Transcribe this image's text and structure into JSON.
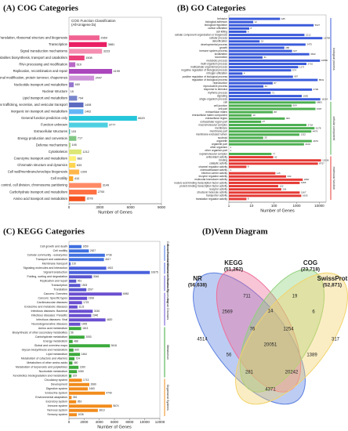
{
  "chart_data": [
    {
      "type": "bar",
      "panel": "(A) COG Categories",
      "title": "COG Function Classification",
      "subtitle": "(All-Unigene.fa)",
      "x_label": "Number of Genes",
      "categories": [
        "Translation, ribosomal structure and biogenesis",
        "Transcription",
        "Signal transduction mechanisms",
        "Secondary metabolites biosynthesis, transport and catabolism",
        "RNA processing and modification",
        "Replication, recombination and repair",
        "Posttranslational modification, protein turnover, chaperones",
        "Nucleotide transport and metabolism",
        "Nuclear structure",
        "Lipid transport and metabolism",
        "Intracellular trafficking, secretion, and vesicular transport",
        "Inorganic ion transport and metabolism",
        "General function prediction only",
        "Function unknown",
        "Extracellular structures",
        "Energy production and conversion",
        "Defense mechanisms",
        "Cytoskeleton",
        "Coenzyme transport and metabolism",
        "Chromatin structure and dynamics",
        "Cell wall/membrane/envelope biogenesis",
        "Cell motility",
        "Cell cycle control, cell division, chromosome partitioning",
        "Carbohydrate transport and metabolism",
        "Amino acid transport and metabolism"
      ],
      "values": [
        2969,
        3681,
        3223,
        1508,
        619,
        4199,
        2447,
        460,
        15,
        794,
        1408,
        1402,
        6620,
        3777,
        103,
        717,
        146,
        1212,
        682,
        633,
        1000,
        410,
        3149,
        2700,
        1578
      ],
      "colors": [
        "#f06292",
        "#e91e63",
        "#f48fb1",
        "#ec407a",
        "#ba68c8",
        "#ab47bc",
        "#ce93d8",
        "#9575cd",
        "#7e57c2",
        "#7986cb",
        "#5c6bc0",
        "#64b5f6",
        "#26c6da",
        "#4dd0e1",
        "#4db6ac",
        "#81c784",
        "#aed581",
        "#dce775",
        "#fff176",
        "#ffd54f",
        "#ffb74d",
        "#ffa726",
        "#ff8a65",
        "#ff7043",
        "#f4511e"
      ],
      "xlim": [
        0,
        9000
      ],
      "xticks": [
        0,
        3000,
        6000,
        9000
      ]
    },
    {
      "type": "bar",
      "panel": "(B) GO Categories",
      "x_label": "Number of Genes",
      "xscale": "log",
      "groups": [
        {
          "name": "biological process",
          "color": "#3b5bdb",
          "categories": [
            "behavior",
            "biological adhesion",
            "biological regulation",
            "carbon utilization",
            "cell killing",
            "cellular component organization or biogenesis",
            "cellular process",
            "detoxification",
            "developmental process",
            "growth",
            "immune system process",
            "localization",
            "locomotion",
            "metabolic process",
            "multi-organism process",
            "multicellular organismal process",
            "negative regulation of biological process",
            "nitrogen utilization",
            "positive regulation of biological process",
            "regulation of biological process",
            "reproduction",
            "reproductive process",
            "response to stimulus",
            "rhythmic process",
            "signaling",
            "single-organism process"
          ],
          "values": [
            185,
            12,
            5627,
            8,
            6,
            2212,
            13789,
            23,
            2475,
            285,
            627,
            3632,
            31,
            10830,
            2716,
            1172,
            574,
            4,
            687,
            8531,
            87,
            34,
            4796,
            71,
            1685,
            11154
          ]
        },
        {
          "name": "cellular component",
          "color": "#4caf50",
          "categories": [
            "cell",
            "cell junction",
            "cell part",
            "extracellular matrix",
            "extracellular matrix component",
            "extracellular region",
            "extracellular region part",
            "macromolecular complex",
            "membrane",
            "membrane part",
            "membrane-enclosed lumen",
            "nucleoid",
            "organelle",
            "organelle part",
            "other organism",
            "other organism part",
            "supramolecular complex"
          ],
          "values": [
            6883,
            604,
            6787,
            88,
            10,
            300,
            27,
            2718,
            6178,
            4479,
            1322,
            33,
            4679,
            2109,
            1,
            1,
            77
          ]
        },
        {
          "name": "molecular function",
          "color": "#e53935",
          "categories": [
            "antioxidant activity",
            "binding",
            "catalytic activity",
            "channel regulator activity",
            "chemoattractant activity",
            "electron carrier activity",
            "enzyme regulator activity",
            "molecular transducer activity",
            "nucleic acid binding transcription factor activity",
            "protein binding transcription factor activity",
            "receptor activity",
            "structural molecule activity",
            "transporter activity",
            "translation regulator activity"
          ],
          "values": [
            92,
            12036,
            8757,
            6,
            1,
            115,
            340,
            1860,
            1365,
            153,
            209,
            1367,
            1605,
            6
          ]
        }
      ],
      "xlim": [
        1,
        20000
      ],
      "xticks": [
        1,
        10,
        100,
        1000,
        10000
      ]
    },
    {
      "type": "bar",
      "panel": "(C) KEGG Categories",
      "x_label": "Number of Genes",
      "groups": [
        {
          "name": "Cellular Processes",
          "color": "#3f6fe0",
          "categories": [
            "Cell growth and death",
            "Cell motility",
            "Cellular community - eukaryotes",
            "Transport and catabolism"
          ],
          "values": [
            1659,
            2627,
            4738,
            4617
          ]
        },
        {
          "name": "Environmental Information Processing",
          "color": "#4a62dc",
          "categories": [
            "Membrane transport",
            "Signaling molecules and interaction",
            "Signal transduction"
          ],
          "values": [
            210,
            4922,
            10675
          ]
        },
        {
          "name": "Genetic Information Processing",
          "color": "#5a55d0",
          "categories": [
            "Folding, sorting and degradation",
            "Replication and repair",
            "Transcription",
            "Translation"
          ],
          "values": [
            3046,
            961,
            1503,
            2297
          ]
        },
        {
          "name": "Human Diseases",
          "color": "#6a4fd0",
          "categories": [
            "Cancers: Overview",
            "Cancers: Specific types",
            "Cardiovascular diseases",
            "Endocrine and metabolic diseases",
            "Infectious diseases: Bacterial",
            "Infectious diseases: Parasitic",
            "Infectious diseases: Viral",
            "Neurodegenerative diseases"
          ],
          "values": [
            6983,
            2398,
            1723,
            1123,
            3136,
            2946,
            4820,
            1495
          ]
        },
        {
          "name": "Metabolism",
          "color": "#3caa3c",
          "categories": [
            "Amino acid metabolism",
            "Biosynthesis of other secondary metabolites",
            "Carbohydrate metabolism",
            "Energy metabolism",
            "Global and overview maps",
            "Glycan biosynthesis and metabolism",
            "Lipid metabolism",
            "Metabolism of cofactors and vitamins",
            "Metabolism of other amino acids",
            "Metabolism of terpenoids and polyketides",
            "Nucleotide metabolism",
            "Xenobiotics biodegradation and metabolism"
          ],
          "values": [
            1613,
            56,
            2053,
            488,
            5416,
            600,
            1464,
            724,
            460,
            1260,
            1060,
            329
          ]
        },
        {
          "name": "Organismal Systems",
          "color": "#f28c1c",
          "categories": [
            "Circulatory system",
            "Development",
            "Digestive system",
            "Endocrine system",
            "Environmental adaptation",
            "Excretory system",
            "Immune system",
            "Nervous system",
            "Sensory system"
          ],
          "values": [
            1713,
            2689,
            2483,
            4749,
            351,
            953,
            5674,
            3813,
            1036
          ]
        }
      ],
      "xlim": [
        0,
        12000
      ],
      "xticks": [
        0,
        2000,
        4000,
        6000,
        8000,
        10000,
        12000
      ]
    },
    {
      "type": "venn",
      "panel": "(D)Venn Diagram",
      "sets": [
        {
          "name": "NR",
          "value": 56638,
          "value_label": "(56,638)",
          "color": "#5b7fe0"
        },
        {
          "name": "KEGG",
          "value": 51262,
          "value_label": "(51,262)",
          "color": "#ee6f9a"
        },
        {
          "name": "COG",
          "value": 23718,
          "value_label": "(23,718)",
          "color": "#8fd17a"
        },
        {
          "name": "SwissProt",
          "value": 52871,
          "value_label": "(52,871)",
          "color": "#f2d36b"
        }
      ],
      "values": [
        711,
        19,
        2569,
        14,
        6,
        4514,
        317,
        76,
        1254,
        20051,
        1389,
        56,
        281,
        20242,
        4371
      ]
    }
  ]
}
